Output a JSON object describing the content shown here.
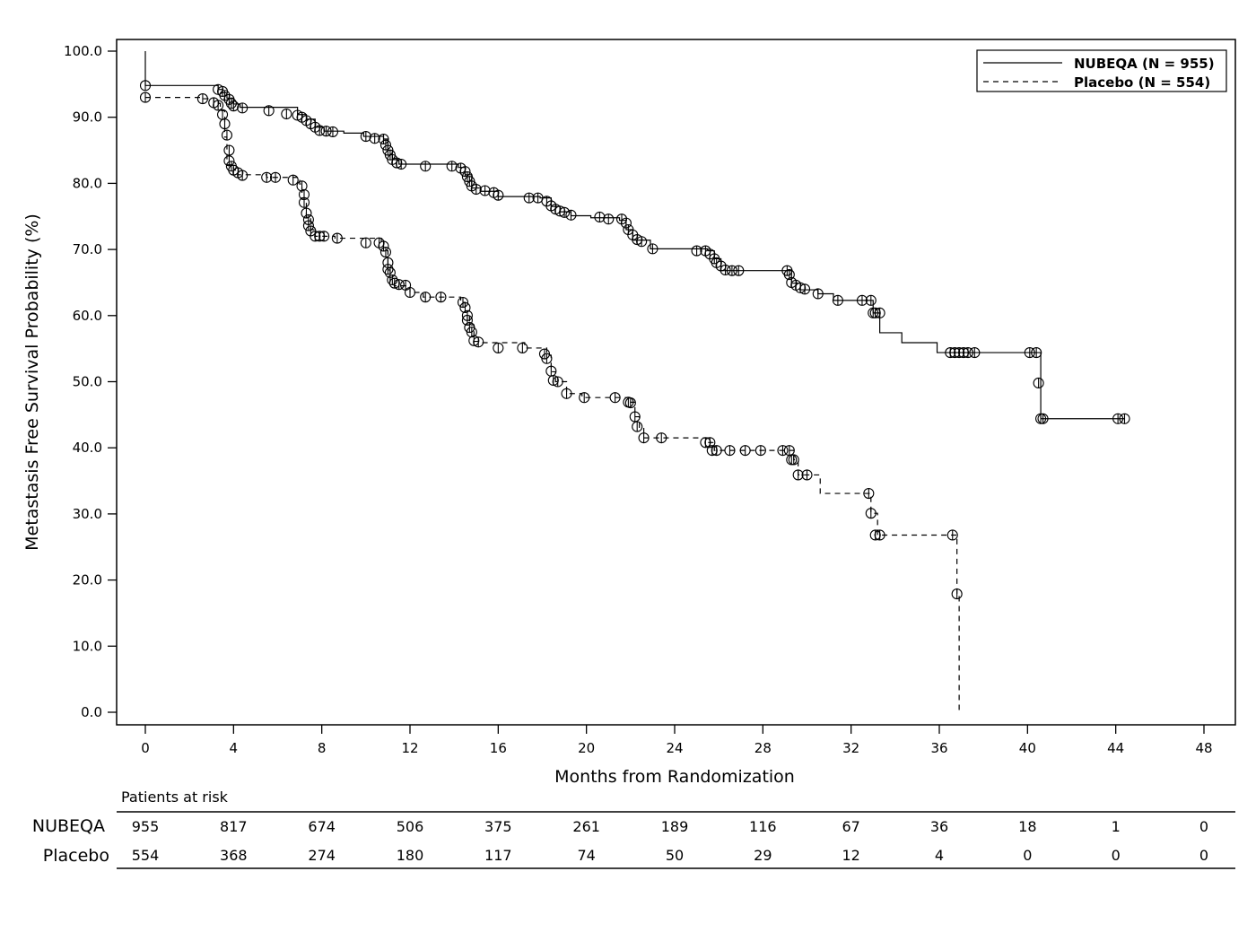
{
  "chart_data": {
    "type": "line",
    "xlabel": "Months from Randomization",
    "ylabel": "Metastasis Free Survival Probability (%)",
    "xlim": [
      0,
      48
    ],
    "ylim": [
      0,
      100
    ],
    "xticks": [
      "0",
      "4",
      "8",
      "12",
      "16",
      "20",
      "24",
      "28",
      "32",
      "36",
      "40",
      "44",
      "48"
    ],
    "yticks": [
      "0.0",
      "10.0",
      "20.0",
      "30.0",
      "40.0",
      "50.0",
      "60.0",
      "70.0",
      "80.0",
      "90.0",
      "100.0"
    ],
    "legend_position": "top-right",
    "series": [
      {
        "name": "NUBEQA (N = 955)",
        "line_style": "solid",
        "points": [
          [
            0,
            100
          ],
          [
            0,
            94.8
          ],
          [
            3.3,
            94.2
          ],
          [
            3.5,
            93.7
          ],
          [
            3.7,
            92.9
          ],
          [
            4.0,
            92.0
          ],
          [
            4.3,
            91.5
          ],
          [
            6.9,
            90.4
          ],
          [
            7.3,
            89.7
          ],
          [
            7.7,
            88.5
          ],
          [
            8.1,
            87.9
          ],
          [
            9.0,
            87.6
          ],
          [
            9.9,
            87.1
          ],
          [
            10.8,
            86.7
          ],
          [
            11.0,
            85.0
          ],
          [
            11.2,
            83.6
          ],
          [
            11.5,
            82.9
          ],
          [
            14.2,
            82.4
          ],
          [
            14.5,
            81.3
          ],
          [
            14.8,
            79.3
          ],
          [
            15.2,
            78.8
          ],
          [
            16.0,
            78.0
          ],
          [
            17.9,
            77.8
          ],
          [
            18.4,
            76.5
          ],
          [
            18.8,
            75.7
          ],
          [
            19.3,
            75.1
          ],
          [
            20.2,
            74.8
          ],
          [
            21.5,
            74.4
          ],
          [
            21.8,
            73.0
          ],
          [
            22.1,
            71.4
          ],
          [
            22.9,
            70.1
          ],
          [
            25.5,
            69.8
          ],
          [
            25.8,
            68.6
          ],
          [
            26.1,
            66.8
          ],
          [
            29.1,
            66.8
          ],
          [
            29.3,
            64.9
          ],
          [
            29.7,
            63.9
          ],
          [
            30.5,
            63.3
          ],
          [
            31.2,
            62.3
          ],
          [
            32.9,
            62.3
          ],
          [
            33.0,
            60.4
          ],
          [
            33.3,
            57.4
          ],
          [
            34.3,
            55.9
          ],
          [
            35.9,
            54.4
          ],
          [
            40.5,
            54.4
          ],
          [
            40.6,
            49.8
          ],
          [
            40.6,
            44.4
          ],
          [
            44.4,
            44.4
          ]
        ],
        "censor_marks": [
          [
            0,
            94.8
          ],
          [
            3.3,
            94.2
          ],
          [
            3.5,
            93.9
          ],
          [
            3.6,
            93.3
          ],
          [
            3.8,
            92.7
          ],
          [
            3.9,
            92.1
          ],
          [
            4.0,
            91.7
          ],
          [
            4.4,
            91.4
          ],
          [
            5.6,
            91.0
          ],
          [
            6.4,
            90.5
          ],
          [
            6.9,
            90.3
          ],
          [
            7.1,
            90.0
          ],
          [
            7.3,
            89.5
          ],
          [
            7.5,
            89.0
          ],
          [
            7.7,
            88.5
          ],
          [
            7.9,
            88.0
          ],
          [
            8.2,
            87.9
          ],
          [
            8.5,
            87.8
          ],
          [
            10.0,
            87.1
          ],
          [
            10.4,
            86.8
          ],
          [
            10.8,
            86.7
          ],
          [
            10.9,
            85.8
          ],
          [
            11.0,
            85.0
          ],
          [
            11.1,
            84.3
          ],
          [
            11.2,
            83.6
          ],
          [
            11.4,
            83.1
          ],
          [
            11.6,
            82.9
          ],
          [
            12.7,
            82.6
          ],
          [
            13.9,
            82.6
          ],
          [
            14.3,
            82.3
          ],
          [
            14.5,
            81.8
          ],
          [
            14.6,
            81.0
          ],
          [
            14.7,
            80.3
          ],
          [
            14.8,
            79.6
          ],
          [
            15.0,
            79.1
          ],
          [
            15.4,
            78.9
          ],
          [
            15.8,
            78.6
          ],
          [
            16.0,
            78.2
          ],
          [
            17.4,
            77.8
          ],
          [
            17.8,
            77.8
          ],
          [
            18.2,
            77.3
          ],
          [
            18.4,
            76.6
          ],
          [
            18.6,
            76.1
          ],
          [
            18.8,
            75.8
          ],
          [
            19.0,
            75.6
          ],
          [
            19.3,
            75.2
          ],
          [
            20.6,
            74.9
          ],
          [
            21.0,
            74.6
          ],
          [
            21.6,
            74.6
          ],
          [
            21.8,
            74.0
          ],
          [
            21.9,
            73.0
          ],
          [
            22.1,
            72.2
          ],
          [
            22.3,
            71.5
          ],
          [
            22.5,
            71.2
          ],
          [
            23.0,
            70.1
          ],
          [
            25.0,
            69.8
          ],
          [
            25.4,
            69.8
          ],
          [
            25.6,
            69.3
          ],
          [
            25.8,
            68.6
          ],
          [
            25.9,
            68.0
          ],
          [
            26.1,
            67.5
          ],
          [
            26.3,
            66.9
          ],
          [
            26.6,
            66.8
          ],
          [
            26.9,
            66.8
          ],
          [
            29.1,
            66.8
          ],
          [
            29.2,
            66.2
          ],
          [
            29.3,
            65.0
          ],
          [
            29.5,
            64.6
          ],
          [
            29.7,
            64.2
          ],
          [
            29.9,
            64.0
          ],
          [
            30.5,
            63.3
          ],
          [
            31.4,
            62.3
          ],
          [
            32.5,
            62.3
          ],
          [
            32.9,
            62.3
          ],
          [
            33.0,
            60.4
          ],
          [
            33.1,
            60.4
          ],
          [
            33.3,
            60.4
          ],
          [
            36.5,
            54.4
          ],
          [
            36.7,
            54.4
          ],
          [
            36.9,
            54.4
          ],
          [
            37.1,
            54.4
          ],
          [
            37.3,
            54.4
          ],
          [
            37.6,
            54.4
          ],
          [
            40.1,
            54.4
          ],
          [
            40.4,
            54.4
          ],
          [
            40.5,
            49.8
          ],
          [
            40.6,
            44.4
          ],
          [
            40.7,
            44.4
          ],
          [
            44.1,
            44.4
          ],
          [
            44.4,
            44.4
          ]
        ]
      },
      {
        "name": "Placebo (N = 554)",
        "line_style": "dashed",
        "points": [
          [
            0,
            93.0
          ],
          [
            2.6,
            92.8
          ],
          [
            3.1,
            92.1
          ],
          [
            3.4,
            91.0
          ],
          [
            3.6,
            87.0
          ],
          [
            3.7,
            82.8
          ],
          [
            4.0,
            82.0
          ],
          [
            4.2,
            81.3
          ],
          [
            5.5,
            80.9
          ],
          [
            7.0,
            79.9
          ],
          [
            7.1,
            77.6
          ],
          [
            7.3,
            74.9
          ],
          [
            7.5,
            73.0
          ],
          [
            7.7,
            72.0
          ],
          [
            8.6,
            71.7
          ],
          [
            10.7,
            71.0
          ],
          [
            10.8,
            69.8
          ],
          [
            11.0,
            66.9
          ],
          [
            11.1,
            65.0
          ],
          [
            11.3,
            64.5
          ],
          [
            12.0,
            63.5
          ],
          [
            12.6,
            62.8
          ],
          [
            14.3,
            62.0
          ],
          [
            14.5,
            60.7
          ],
          [
            14.7,
            58.6
          ],
          [
            14.9,
            56.1
          ],
          [
            15.2,
            55.9
          ],
          [
            17.2,
            55.1
          ],
          [
            18.2,
            54.0
          ],
          [
            18.4,
            51.5
          ],
          [
            18.6,
            50.0
          ],
          [
            19.1,
            48.2
          ],
          [
            19.8,
            47.6
          ],
          [
            22.0,
            46.9
          ],
          [
            22.2,
            44.7
          ],
          [
            22.4,
            43.1
          ],
          [
            22.6,
            41.5
          ],
          [
            25.5,
            40.8
          ],
          [
            25.8,
            39.6
          ],
          [
            29.3,
            39.6
          ],
          [
            29.4,
            38.2
          ],
          [
            29.6,
            35.9
          ],
          [
            30.6,
            33.1
          ],
          [
            32.8,
            33.1
          ],
          [
            32.9,
            30.1
          ],
          [
            33.2,
            26.8
          ],
          [
            36.7,
            26.8
          ],
          [
            36.8,
            17.9
          ],
          [
            36.9,
            0
          ]
        ],
        "censor_marks": [
          [
            0,
            93.0
          ],
          [
            2.6,
            92.8
          ],
          [
            3.1,
            92.2
          ],
          [
            3.3,
            91.8
          ],
          [
            3.5,
            90.4
          ],
          [
            3.6,
            89.0
          ],
          [
            3.7,
            87.3
          ],
          [
            3.8,
            85.0
          ],
          [
            3.8,
            83.4
          ],
          [
            3.9,
            82.6
          ],
          [
            4.0,
            82.0
          ],
          [
            4.2,
            81.6
          ],
          [
            4.4,
            81.2
          ],
          [
            5.5,
            80.9
          ],
          [
            5.9,
            80.9
          ],
          [
            6.7,
            80.5
          ],
          [
            7.1,
            79.6
          ],
          [
            7.2,
            78.3
          ],
          [
            7.2,
            77.1
          ],
          [
            7.3,
            75.5
          ],
          [
            7.4,
            74.5
          ],
          [
            7.4,
            73.6
          ],
          [
            7.5,
            72.8
          ],
          [
            7.7,
            72.0
          ],
          [
            7.9,
            72.0
          ],
          [
            8.1,
            72.0
          ],
          [
            8.7,
            71.7
          ],
          [
            10.0,
            71.0
          ],
          [
            10.6,
            71.0
          ],
          [
            10.8,
            70.5
          ],
          [
            10.9,
            69.6
          ],
          [
            11.0,
            68.0
          ],
          [
            11.0,
            67.0
          ],
          [
            11.1,
            66.5
          ],
          [
            11.2,
            65.4
          ],
          [
            11.3,
            64.9
          ],
          [
            11.5,
            64.7
          ],
          [
            11.8,
            64.6
          ],
          [
            12.0,
            63.5
          ],
          [
            12.7,
            62.8
          ],
          [
            13.4,
            62.8
          ],
          [
            14.4,
            62.0
          ],
          [
            14.5,
            61.2
          ],
          [
            14.6,
            60.0
          ],
          [
            14.6,
            59.3
          ],
          [
            14.7,
            58.2
          ],
          [
            14.8,
            57.5
          ],
          [
            14.9,
            56.2
          ],
          [
            15.1,
            56.0
          ],
          [
            16.0,
            55.1
          ],
          [
            17.1,
            55.1
          ],
          [
            18.1,
            54.2
          ],
          [
            18.2,
            53.5
          ],
          [
            18.4,
            51.6
          ],
          [
            18.5,
            50.2
          ],
          [
            18.7,
            50.0
          ],
          [
            19.1,
            48.2
          ],
          [
            19.9,
            47.6
          ],
          [
            21.3,
            47.6
          ],
          [
            21.9,
            46.9
          ],
          [
            22.0,
            46.8
          ],
          [
            22.2,
            44.7
          ],
          [
            22.3,
            43.2
          ],
          [
            22.6,
            41.5
          ],
          [
            23.4,
            41.5
          ],
          [
            25.4,
            40.8
          ],
          [
            25.6,
            40.8
          ],
          [
            25.7,
            39.6
          ],
          [
            25.9,
            39.6
          ],
          [
            26.5,
            39.6
          ],
          [
            27.2,
            39.6
          ],
          [
            27.9,
            39.6
          ],
          [
            28.9,
            39.6
          ],
          [
            29.2,
            39.6
          ],
          [
            29.3,
            38.2
          ],
          [
            29.4,
            38.2
          ],
          [
            29.6,
            35.9
          ],
          [
            30.0,
            35.9
          ],
          [
            32.8,
            33.1
          ],
          [
            32.9,
            30.1
          ],
          [
            33.1,
            26.8
          ],
          [
            33.3,
            26.8
          ],
          [
            36.6,
            26.8
          ],
          [
            36.8,
            17.9
          ]
        ]
      }
    ],
    "risk_table": {
      "title": "Patients at risk",
      "times": [
        "0",
        "4",
        "8",
        "12",
        "16",
        "20",
        "24",
        "28",
        "32",
        "36",
        "40",
        "44",
        "48"
      ],
      "rows": [
        {
          "label": "NUBEQA",
          "counts": [
            "955",
            "817",
            "674",
            "506",
            "375",
            "261",
            "189",
            "116",
            "67",
            "36",
            "18",
            "1",
            "0"
          ]
        },
        {
          "label": "Placebo",
          "counts": [
            "554",
            "368",
            "274",
            "180",
            "117",
            "74",
            "50",
            "29",
            "12",
            "4",
            "0",
            "0",
            "0"
          ]
        }
      ]
    }
  }
}
